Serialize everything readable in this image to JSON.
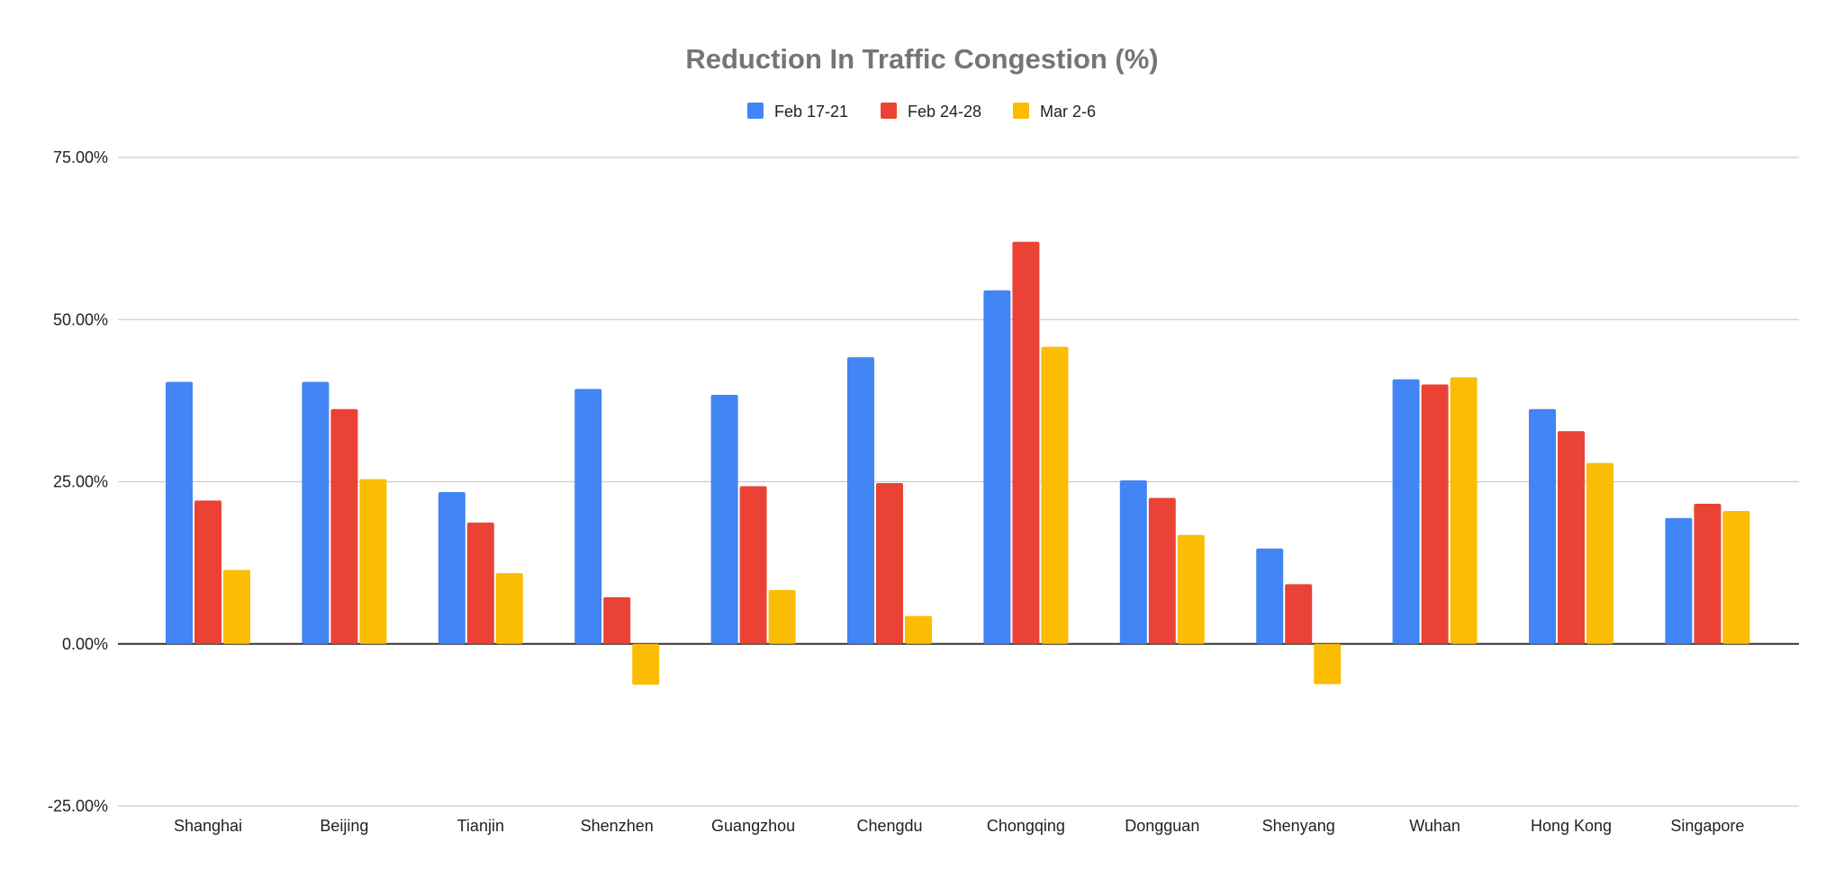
{
  "chart_data": {
    "type": "bar",
    "title": "Reduction In Traffic Congestion (%)",
    "xlabel": "",
    "ylabel": "",
    "ylim": [
      -25,
      75
    ],
    "yticks": [
      75,
      50,
      25,
      0,
      -25
    ],
    "ytick_labels": [
      "75.00%",
      "50.00%",
      "25.00%",
      "0.00%",
      "-25.00%"
    ],
    "grid": true,
    "legend_position": "top",
    "categories": [
      "Shanghai",
      "Beijing",
      "Tianjin",
      "Shenzhen",
      "Guangzhou",
      "Chengdu",
      "Chongqing",
      "Dongguan",
      "Shenyang",
      "Wuhan",
      "Hong Kong",
      "Singapore"
    ],
    "series": [
      {
        "name": "Feb 17-21",
        "color": "#4285f4",
        "values": [
          40.4,
          40.4,
          23.4,
          39.3,
          38.4,
          44.2,
          54.5,
          25.2,
          14.7,
          40.8,
          36.2,
          19.4
        ]
      },
      {
        "name": "Feb 24-28",
        "color": "#ea4335",
        "values": [
          22.1,
          36.2,
          18.7,
          7.2,
          24.3,
          24.8,
          62.0,
          22.5,
          9.2,
          40.0,
          32.8,
          21.6
        ]
      },
      {
        "name": "Mar 2-6",
        "color": "#fbbc04",
        "values": [
          11.4,
          25.4,
          10.9,
          -6.3,
          8.3,
          4.3,
          45.8,
          16.8,
          -6.2,
          41.1,
          27.9,
          20.5
        ]
      }
    ]
  }
}
